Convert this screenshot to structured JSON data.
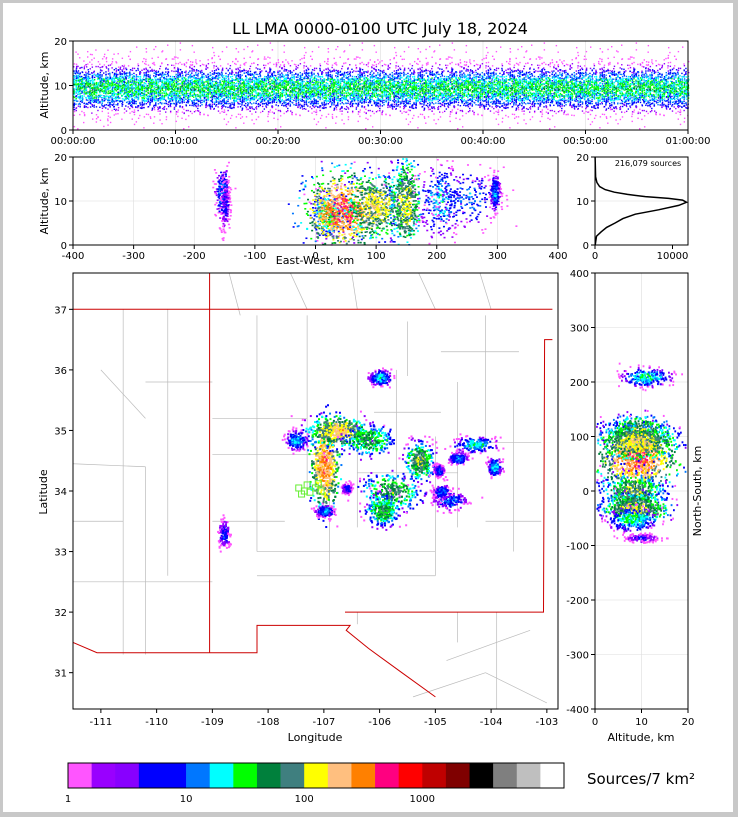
{
  "title": "LL LMA 0000-0100 UTC July 18, 2024",
  "chart_data": [
    {
      "id": "time-height",
      "type": "heatmap",
      "ylabel": "Altitude, km",
      "xlim": [
        "00:00:00",
        "01:00:00"
      ],
      "ylim": [
        0,
        20
      ],
      "x_ticks": [
        "00:00:00",
        "00:10:00",
        "00:20:00",
        "00:30:00",
        "00:40:00",
        "00:50:00",
        "01:00:00"
      ],
      "y_ticks": [
        0,
        10,
        20
      ],
      "grid": true
    },
    {
      "id": "ew-height",
      "type": "heatmap",
      "xlabel": "East-West, km",
      "ylabel": "Altitude, km",
      "xlim": [
        -400,
        400
      ],
      "ylim": [
        0,
        20
      ],
      "x_ticks": [
        -400,
        -300,
        -200,
        -100,
        0,
        100,
        200,
        300,
        400
      ],
      "y_ticks": [
        0,
        10,
        20
      ],
      "grid": true,
      "clusters": [
        {
          "x": -155,
          "z": 12,
          "sx": 6,
          "sz": 3,
          "peak": 12
        },
        {
          "x": -150,
          "z": 9,
          "sx": 4,
          "sz": 3,
          "peak": 5
        },
        {
          "x": 20,
          "z": 7,
          "sx": 14,
          "sz": 2.5,
          "peak": 40
        },
        {
          "x": 45,
          "z": 8,
          "sx": 30,
          "sz": 4,
          "peak": 400
        },
        {
          "x": 100,
          "z": 9,
          "sx": 25,
          "sz": 3.5,
          "peak": 150
        },
        {
          "x": 148,
          "z": 9.5,
          "sx": 12,
          "sz": 5,
          "peak": 120
        },
        {
          "x": 205,
          "z": 10,
          "sx": 16,
          "sz": 4,
          "peak": 20
        },
        {
          "x": 250,
          "z": 10.5,
          "sx": 25,
          "sz": 3.5,
          "peak": 12
        },
        {
          "x": 295,
          "z": 12,
          "sx": 4,
          "sz": 2,
          "peak": 15
        }
      ]
    },
    {
      "id": "altitude-histogram",
      "type": "line",
      "annotation": "216,079 sources",
      "xlim": [
        0,
        12000
      ],
      "ylim": [
        0,
        20
      ],
      "x_ticks": [
        0,
        10000
      ],
      "y_ticks": [
        0,
        10,
        20
      ],
      "series": [
        {
          "x": [
            20,
            200,
            800,
            1500,
            2600,
            3600,
            5200,
            8200,
            10800,
            11800,
            11300,
            9500,
            6500,
            4200,
            2500,
            1300,
            600,
            250,
            80,
            10
          ],
          "y": [
            0,
            2,
            3,
            4,
            5,
            6,
            7,
            8,
            9,
            9.7,
            10.2,
            10.6,
            11,
            11.5,
            12,
            12.6,
            13.3,
            14.2,
            15.5,
            21
          ]
        }
      ]
    },
    {
      "id": "plan-view",
      "type": "heatmap",
      "xlabel": "Longitude",
      "ylabel": "Latitude",
      "xlim": [
        -111.5,
        -102.8
      ],
      "ylim": [
        30.4,
        37.6
      ],
      "x_ticks": [
        -111,
        -110,
        -109,
        -108,
        -107,
        -106,
        -105,
        -104,
        -103
      ],
      "y_ticks": [
        31,
        32,
        33,
        34,
        35,
        36,
        37
      ],
      "clusters": [
        {
          "lon": -107.0,
          "lat": 34.45,
          "sx": 0.12,
          "sy": 0.35,
          "peak": 300
        },
        {
          "lon": -106.75,
          "lat": 35.0,
          "sx": 0.25,
          "sy": 0.12,
          "peak": 180
        },
        {
          "lon": -106.2,
          "lat": 34.85,
          "sx": 0.2,
          "sy": 0.12,
          "peak": 60
        },
        {
          "lon": -105.8,
          "lat": 34.0,
          "sx": 0.25,
          "sy": 0.15,
          "peak": 70
        },
        {
          "lon": -105.95,
          "lat": 33.7,
          "sx": 0.15,
          "sy": 0.12,
          "peak": 60
        },
        {
          "lon": -105.3,
          "lat": 34.5,
          "sx": 0.12,
          "sy": 0.15,
          "peak": 90
        },
        {
          "lon": -106.0,
          "lat": 35.88,
          "sx": 0.1,
          "sy": 0.06,
          "peak": 20
        },
        {
          "lon": -107.5,
          "lat": 34.85,
          "sx": 0.1,
          "sy": 0.08,
          "peak": 18
        },
        {
          "lon": -104.3,
          "lat": 34.78,
          "sx": 0.18,
          "sy": 0.06,
          "peak": 25
        },
        {
          "lon": -104.6,
          "lat": 34.55,
          "sx": 0.08,
          "sy": 0.05,
          "peak": 15
        },
        {
          "lon": -103.95,
          "lat": 34.4,
          "sx": 0.06,
          "sy": 0.08,
          "peak": 20
        },
        {
          "lon": -104.75,
          "lat": 33.85,
          "sx": 0.15,
          "sy": 0.07,
          "peak": 12
        },
        {
          "lon": -104.9,
          "lat": 34.0,
          "sx": 0.08,
          "sy": 0.06,
          "peak": 12
        },
        {
          "lon": -104.95,
          "lat": 34.35,
          "sx": 0.05,
          "sy": 0.05,
          "peak": 10
        },
        {
          "lon": -107.0,
          "lat": 33.68,
          "sx": 0.08,
          "sy": 0.05,
          "peak": 15
        },
        {
          "lon": -108.8,
          "lat": 33.3,
          "sx": 0.05,
          "sy": 0.12,
          "peak": 8
        },
        {
          "lon": -106.6,
          "lat": 34.05,
          "sx": 0.05,
          "sy": 0.04,
          "peak": 8
        }
      ],
      "station_marker_color": "#66ee33",
      "state_border_color": "#cc0000",
      "county_line_color": "#bbbbbb"
    },
    {
      "id": "height-ns",
      "type": "heatmap",
      "xlabel": "Altitude, km",
      "ylabel": "North-South, km",
      "xlim": [
        0,
        20
      ],
      "ylim": [
        -400,
        400
      ],
      "x_ticks": [
        0,
        10,
        20
      ],
      "y_ticks": [
        -400,
        -300,
        -200,
        -100,
        0,
        100,
        200,
        300,
        400
      ],
      "grid": true,
      "clusters": [
        {
          "y": 210,
          "z": 11,
          "sy": 8,
          "sz": 2.5,
          "peak": 25
        },
        {
          "y": 110,
          "z": 9,
          "sy": 14,
          "sz": 3.5,
          "peak": 100
        },
        {
          "y": 60,
          "z": 9,
          "sy": 25,
          "sz": 4,
          "peak": 350
        },
        {
          "y": 90,
          "z": 9,
          "sy": 15,
          "sz": 4,
          "peak": 150
        },
        {
          "y": 0,
          "z": 8,
          "sy": 15,
          "sz": 3,
          "peak": 100
        },
        {
          "y": -30,
          "z": 8.5,
          "sy": 12,
          "sz": 3.5,
          "peak": 120
        },
        {
          "y": -50,
          "z": 8,
          "sy": 10,
          "sz": 2.5,
          "peak": 30
        },
        {
          "y": -85,
          "z": 10,
          "sy": 4,
          "sz": 2,
          "peak": 5
        }
      ]
    }
  ],
  "colorbar": {
    "label": "Sources/7 km²",
    "tick_labels": [
      "1",
      "10",
      "100",
      "1000"
    ],
    "colors": [
      "#ff55ff",
      "#9900ff",
      "#8800ff",
      "#0000ff",
      "#0000ff",
      "#0077ff",
      "#00ffff",
      "#00ff00",
      "#00803c",
      "#3f7f7f",
      "#ffff00",
      "#ffbf7f",
      "#ff8000",
      "#ff0080",
      "#ff0000",
      "#bf0000",
      "#7f0000",
      "#000000",
      "#7f7f7f",
      "#bfbfbf",
      "#ffffff"
    ]
  }
}
